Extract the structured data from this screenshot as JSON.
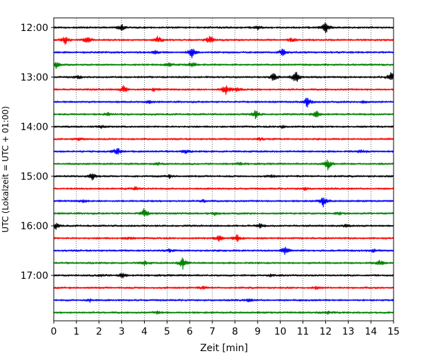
{
  "chart_data": {
    "type": "line",
    "title": "",
    "xlabel": "Zeit  [min]",
    "ylabel": "UTC (Lokalzeit = UTC + 01:00)",
    "xlim": [
      0,
      15
    ],
    "x_ticks": [
      "0",
      "1",
      "2",
      "3",
      "4",
      "5",
      "6",
      "7",
      "8",
      "9",
      "10",
      "11",
      "12",
      "13",
      "14",
      "15"
    ],
    "y_ticks": [
      "12:00",
      "13:00",
      "14:00",
      "15:00",
      "16:00",
      "17:00"
    ],
    "grid": "vertical dotted",
    "legend": "none",
    "trace_colors": [
      "#000000",
      "#ff0000",
      "#0000ff",
      "#008000"
    ],
    "traces": [
      {
        "start": "12:00",
        "bursts": [
          [
            3.0,
            4
          ],
          [
            12.0,
            9
          ],
          [
            9.0,
            3
          ]
        ]
      },
      {
        "start": "12:15",
        "bursts": [
          [
            0.5,
            7
          ],
          [
            1.5,
            6
          ],
          [
            4.6,
            6
          ],
          [
            6.9,
            7
          ],
          [
            10.5,
            3
          ]
        ]
      },
      {
        "start": "12:30",
        "bursts": [
          [
            6.1,
            7
          ],
          [
            10.1,
            5
          ],
          [
            4.5,
            2
          ]
        ]
      },
      {
        "start": "12:45",
        "bursts": [
          [
            0.1,
            5
          ],
          [
            5.1,
            3
          ],
          [
            6.1,
            5
          ]
        ]
      },
      {
        "start": "13:00",
        "bursts": [
          [
            9.7,
            6
          ],
          [
            10.7,
            11
          ],
          [
            14.9,
            8
          ],
          [
            1.1,
            2
          ]
        ]
      },
      {
        "start": "13:15",
        "bursts": [
          [
            3.1,
            6
          ],
          [
            7.6,
            9
          ],
          [
            8.1,
            4
          ],
          [
            4.4,
            2
          ]
        ]
      },
      {
        "start": "13:30",
        "bursts": [
          [
            11.2,
            8
          ],
          [
            4.2,
            2
          ],
          [
            13.7,
            2
          ]
        ]
      },
      {
        "start": "13:45",
        "bursts": [
          [
            8.9,
            6
          ],
          [
            11.6,
            5
          ],
          [
            2.4,
            2
          ]
        ]
      },
      {
        "start": "14:00",
        "bursts": [
          [
            2.1,
            2
          ],
          [
            10.1,
            2
          ]
        ]
      },
      {
        "start": "14:15",
        "bursts": [
          [
            1.1,
            2
          ],
          [
            9.1,
            2
          ]
        ]
      },
      {
        "start": "14:30",
        "bursts": [
          [
            2.8,
            6
          ],
          [
            5.8,
            3
          ],
          [
            13.6,
            2
          ]
        ]
      },
      {
        "start": "14:45",
        "bursts": [
          [
            12.1,
            8
          ],
          [
            4.6,
            2
          ],
          [
            8.2,
            2
          ]
        ]
      },
      {
        "start": "15:00",
        "bursts": [
          [
            1.7,
            6
          ],
          [
            5.1,
            2
          ],
          [
            9.6,
            2
          ]
        ]
      },
      {
        "start": "15:15",
        "bursts": [
          [
            3.6,
            2
          ],
          [
            11.1,
            2
          ]
        ]
      },
      {
        "start": "15:30",
        "bursts": [
          [
            11.9,
            8
          ],
          [
            6.6,
            2
          ],
          [
            1.3,
            2
          ]
        ]
      },
      {
        "start": "15:45",
        "bursts": [
          [
            4.0,
            7
          ],
          [
            7.1,
            2
          ],
          [
            12.6,
            2
          ]
        ]
      },
      {
        "start": "16:00",
        "bursts": [
          [
            0.1,
            4
          ],
          [
            9.1,
            3
          ],
          [
            12.9,
            2
          ]
        ]
      },
      {
        "start": "16:15",
        "bursts": [
          [
            8.1,
            6
          ],
          [
            7.3,
            4
          ],
          [
            3.3,
            2
          ]
        ]
      },
      {
        "start": "16:30",
        "bursts": [
          [
            10.2,
            6
          ],
          [
            5.1,
            2
          ],
          [
            14.1,
            2
          ]
        ]
      },
      {
        "start": "16:45",
        "bursts": [
          [
            5.7,
            9
          ],
          [
            14.4,
            4
          ],
          [
            4.0,
            3
          ]
        ]
      },
      {
        "start": "17:00",
        "bursts": [
          [
            3.0,
            4
          ],
          [
            9.6,
            2
          ],
          [
            2.1,
            2
          ]
        ]
      },
      {
        "start": "17:15",
        "bursts": [
          [
            6.6,
            2
          ],
          [
            11.6,
            2
          ]
        ]
      },
      {
        "start": "17:30",
        "bursts": [
          [
            1.6,
            2
          ],
          [
            8.6,
            2
          ]
        ]
      },
      {
        "start": "17:45",
        "bursts": [
          [
            4.6,
            2
          ],
          [
            12.1,
            2
          ]
        ]
      }
    ]
  }
}
